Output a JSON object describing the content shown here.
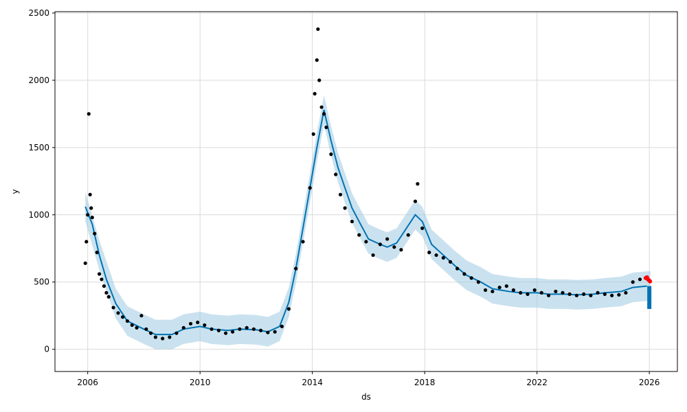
{
  "chart_data": {
    "type": "scatter",
    "title": "",
    "xlabel": "ds",
    "ylabel": "y",
    "x_axis_type": "date",
    "xlim": [
      "2004-11-01",
      "2027-01-01"
    ],
    "ylim": [
      -165,
      2510
    ],
    "xticks": [
      "2006",
      "2010",
      "2014",
      "2018",
      "2022",
      "2026"
    ],
    "yticks": [
      0,
      500,
      1000,
      1500,
      2000,
      2500
    ],
    "grid": true,
    "colors": {
      "observed": "#000000",
      "forecast_line": "#0072B2",
      "uncertainty_band": "#9ecae1",
      "recent_points": "#ff0000",
      "grid": "#d9d9d9"
    },
    "series": [
      {
        "role": "observed",
        "style": "points",
        "points": [
          [
            "2005-12-01",
            640
          ],
          [
            "2005-12-15",
            800
          ],
          [
            "2006-01-01",
            1000
          ],
          [
            "2006-01-15",
            1750
          ],
          [
            "2006-02-01",
            1150
          ],
          [
            "2006-02-15",
            1050
          ],
          [
            "2006-03-01",
            980
          ],
          [
            "2006-04-01",
            860
          ],
          [
            "2006-05-01",
            720
          ],
          [
            "2006-06-01",
            560
          ],
          [
            "2006-07-01",
            520
          ],
          [
            "2006-08-01",
            470
          ],
          [
            "2006-09-01",
            420
          ],
          [
            "2006-10-01",
            390
          ],
          [
            "2006-12-01",
            310
          ],
          [
            "2007-02-01",
            270
          ],
          [
            "2007-04-01",
            240
          ],
          [
            "2007-06-01",
            210
          ],
          [
            "2007-08-01",
            180
          ],
          [
            "2007-10-01",
            160
          ],
          [
            "2007-12-01",
            250
          ],
          [
            "2008-02-01",
            150
          ],
          [
            "2008-04-01",
            120
          ],
          [
            "2008-06-01",
            90
          ],
          [
            "2008-09-01",
            80
          ],
          [
            "2008-12-01",
            90
          ],
          [
            "2009-03-01",
            120
          ],
          [
            "2009-06-01",
            160
          ],
          [
            "2009-09-01",
            190
          ],
          [
            "2009-12-01",
            200
          ],
          [
            "2010-03-01",
            180
          ],
          [
            "2010-06-01",
            150
          ],
          [
            "2010-09-01",
            140
          ],
          [
            "2010-12-01",
            120
          ],
          [
            "2011-03-01",
            130
          ],
          [
            "2011-06-01",
            150
          ],
          [
            "2011-09-01",
            160
          ],
          [
            "2011-12-01",
            150
          ],
          [
            "2012-03-01",
            140
          ],
          [
            "2012-06-01",
            125
          ],
          [
            "2012-09-01",
            130
          ],
          [
            "2012-12-01",
            170
          ],
          [
            "2013-03-01",
            300
          ],
          [
            "2013-06-01",
            600
          ],
          [
            "2013-09-01",
            800
          ],
          [
            "2013-12-01",
            1200
          ],
          [
            "2014-01-15",
            1600
          ],
          [
            "2014-02-01",
            1900
          ],
          [
            "2014-03-01",
            2150
          ],
          [
            "2014-03-15",
            2380
          ],
          [
            "2014-04-01",
            2000
          ],
          [
            "2014-05-01",
            1800
          ],
          [
            "2014-06-01",
            1750
          ],
          [
            "2014-07-01",
            1650
          ],
          [
            "2014-09-01",
            1450
          ],
          [
            "2014-11-01",
            1300
          ],
          [
            "2015-01-01",
            1150
          ],
          [
            "2015-03-01",
            1050
          ],
          [
            "2015-06-01",
            950
          ],
          [
            "2015-09-01",
            850
          ],
          [
            "2015-12-01",
            800
          ],
          [
            "2016-03-01",
            700
          ],
          [
            "2016-06-01",
            780
          ],
          [
            "2016-09-01",
            820
          ],
          [
            "2016-12-01",
            760
          ],
          [
            "2017-03-01",
            740
          ],
          [
            "2017-06-01",
            850
          ],
          [
            "2017-09-01",
            1100
          ],
          [
            "2017-10-01",
            1230
          ],
          [
            "2017-12-01",
            900
          ],
          [
            "2018-03-01",
            720
          ],
          [
            "2018-06-01",
            700
          ],
          [
            "2018-09-01",
            680
          ],
          [
            "2018-12-01",
            650
          ],
          [
            "2019-03-01",
            600
          ],
          [
            "2019-06-01",
            560
          ],
          [
            "2019-09-01",
            530
          ],
          [
            "2019-12-01",
            500
          ],
          [
            "2020-03-01",
            440
          ],
          [
            "2020-06-01",
            430
          ],
          [
            "2020-09-01",
            460
          ],
          [
            "2020-12-01",
            470
          ],
          [
            "2021-03-01",
            440
          ],
          [
            "2021-06-01",
            420
          ],
          [
            "2021-09-01",
            410
          ],
          [
            "2021-12-01",
            440
          ],
          [
            "2022-03-01",
            420
          ],
          [
            "2022-06-01",
            400
          ],
          [
            "2022-09-01",
            430
          ],
          [
            "2022-12-01",
            420
          ],
          [
            "2023-03-01",
            410
          ],
          [
            "2023-06-01",
            400
          ],
          [
            "2023-09-01",
            410
          ],
          [
            "2023-12-01",
            400
          ],
          [
            "2024-03-01",
            420
          ],
          [
            "2024-06-01",
            410
          ],
          [
            "2024-09-01",
            400
          ],
          [
            "2024-12-01",
            405
          ],
          [
            "2025-03-01",
            420
          ],
          [
            "2025-06-01",
            500
          ],
          [
            "2025-09-01",
            520
          ],
          [
            "2025-12-01",
            530
          ]
        ]
      },
      {
        "role": "recent",
        "style": "points",
        "points": [
          [
            "2025-11-15",
            530
          ],
          [
            "2025-12-01",
            535
          ],
          [
            "2025-12-15",
            520
          ],
          [
            "2026-01-01",
            510
          ],
          [
            "2026-01-10",
            505
          ]
        ]
      },
      {
        "role": "fit",
        "style": "line",
        "points": [
          [
            "2005-12-01",
            1060
          ],
          [
            "2006-03-01",
            930
          ],
          [
            "2006-06-01",
            700
          ],
          [
            "2006-09-01",
            520
          ],
          [
            "2007-01-01",
            340
          ],
          [
            "2007-06-01",
            210
          ],
          [
            "2008-01-01",
            150
          ],
          [
            "2008-06-01",
            110
          ],
          [
            "2009-01-01",
            110
          ],
          [
            "2009-06-01",
            150
          ],
          [
            "2010-01-01",
            170
          ],
          [
            "2010-06-01",
            150
          ],
          [
            "2011-01-01",
            140
          ],
          [
            "2011-06-01",
            150
          ],
          [
            "2012-01-01",
            145
          ],
          [
            "2012-06-01",
            130
          ],
          [
            "2012-11-01",
            170
          ],
          [
            "2013-03-01",
            350
          ],
          [
            "2013-06-01",
            600
          ],
          [
            "2013-09-01",
            900
          ],
          [
            "2013-12-01",
            1200
          ],
          [
            "2014-03-01",
            1500
          ],
          [
            "2014-06-01",
            1780
          ],
          [
            "2014-09-01",
            1550
          ],
          [
            "2014-12-01",
            1350
          ],
          [
            "2015-03-01",
            1200
          ],
          [
            "2015-06-01",
            1050
          ],
          [
            "2015-09-01",
            950
          ],
          [
            "2016-01-01",
            820
          ],
          [
            "2016-06-01",
            780
          ],
          [
            "2016-09-01",
            760
          ],
          [
            "2017-01-01",
            790
          ],
          [
            "2017-06-01",
            920
          ],
          [
            "2017-09-01",
            1000
          ],
          [
            "2017-12-01",
            950
          ],
          [
            "2018-04-01",
            780
          ],
          [
            "2018-09-01",
            700
          ],
          [
            "2019-02-01",
            620
          ],
          [
            "2019-07-01",
            550
          ],
          [
            "2020-01-01",
            500
          ],
          [
            "2020-06-01",
            450
          ],
          [
            "2021-01-01",
            430
          ],
          [
            "2021-06-01",
            420
          ],
          [
            "2022-01-01",
            420
          ],
          [
            "2022-06-01",
            410
          ],
          [
            "2023-01-01",
            410
          ],
          [
            "2023-06-01",
            405
          ],
          [
            "2024-01-01",
            410
          ],
          [
            "2024-06-01",
            420
          ],
          [
            "2025-01-01",
            430
          ],
          [
            "2025-06-01",
            460
          ],
          [
            "2025-12-01",
            470
          ]
        ]
      },
      {
        "role": "uncertainty",
        "style": "band",
        "points": [
          [
            "2005-12-01",
            1060
          ],
          [
            "2006-06-01",
            700
          ],
          [
            "2007-01-01",
            340
          ],
          [
            "2007-06-01",
            210
          ],
          [
            "2008-01-01",
            150
          ],
          [
            "2008-06-01",
            110
          ],
          [
            "2009-01-01",
            110
          ],
          [
            "2009-06-01",
            150
          ],
          [
            "2010-01-01",
            170
          ],
          [
            "2010-06-01",
            150
          ],
          [
            "2011-01-01",
            140
          ],
          [
            "2011-06-01",
            150
          ],
          [
            "2012-01-01",
            145
          ],
          [
            "2012-06-01",
            130
          ],
          [
            "2012-11-01",
            170
          ],
          [
            "2013-03-01",
            350
          ],
          [
            "2013-06-01",
            600
          ],
          [
            "2013-09-01",
            900
          ],
          [
            "2013-12-01",
            1200
          ],
          [
            "2014-03-01",
            1500
          ],
          [
            "2014-06-01",
            1780
          ],
          [
            "2014-09-01",
            1550
          ],
          [
            "2014-12-01",
            1350
          ],
          [
            "2015-03-01",
            1200
          ],
          [
            "2015-06-01",
            1050
          ],
          [
            "2015-09-01",
            950
          ],
          [
            "2016-01-01",
            820
          ],
          [
            "2016-06-01",
            780
          ],
          [
            "2016-09-01",
            760
          ],
          [
            "2017-01-01",
            790
          ],
          [
            "2017-06-01",
            920
          ],
          [
            "2017-09-01",
            1000
          ],
          [
            "2017-12-01",
            950
          ],
          [
            "2018-04-01",
            780
          ],
          [
            "2018-09-01",
            700
          ],
          [
            "2019-02-01",
            620
          ],
          [
            "2019-07-01",
            550
          ],
          [
            "2020-01-01",
            500
          ],
          [
            "2020-06-01",
            450
          ],
          [
            "2021-01-01",
            430
          ],
          [
            "2021-06-01",
            420
          ],
          [
            "2022-01-01",
            420
          ],
          [
            "2022-06-01",
            410
          ],
          [
            "2023-01-01",
            410
          ],
          [
            "2023-06-01",
            405
          ],
          [
            "2024-01-01",
            410
          ],
          [
            "2024-06-01",
            420
          ],
          [
            "2025-01-01",
            430
          ],
          [
            "2025-06-01",
            460
          ],
          [
            "2025-12-01",
            470
          ],
          [
            "2026-01-15",
            470
          ]
        ],
        "half_width": 110
      },
      {
        "role": "forecast",
        "style": "spike",
        "points": [
          [
            "2026-01-01",
            300
          ],
          [
            "2026-01-15",
            470
          ]
        ]
      }
    ]
  }
}
